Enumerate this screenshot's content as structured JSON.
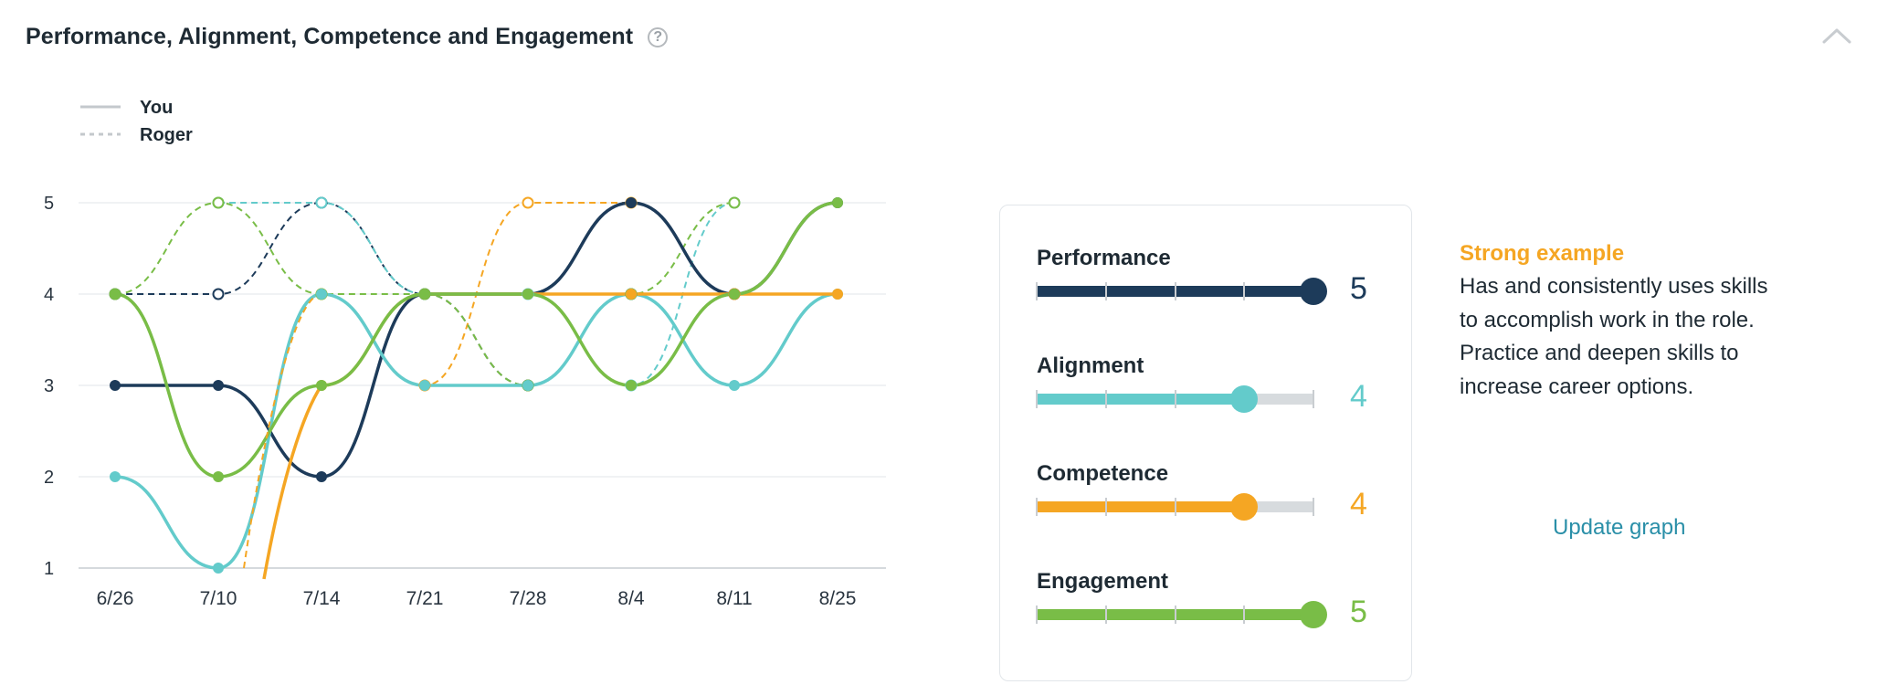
{
  "header": {
    "title": "Performance, Alignment, Competence and Engagement",
    "help_icon": "?"
  },
  "chart_data": {
    "type": "line",
    "title": "",
    "xlabel": "",
    "ylabel": "",
    "categories": [
      "6/26",
      "7/10",
      "7/14",
      "7/21",
      "7/28",
      "8/4",
      "8/11",
      "8/25"
    ],
    "ylim": [
      1,
      5
    ],
    "yticks": [
      "1",
      "2",
      "3",
      "4",
      "5"
    ],
    "legend": [
      {
        "label": "You",
        "style": "solid"
      },
      {
        "label": "Roger",
        "style": "dashed"
      }
    ],
    "legend_position": "top-left",
    "series": [
      {
        "metric": "Performance",
        "person": "You",
        "color": "#1d3b5a",
        "values": [
          3,
          3,
          2,
          4,
          4,
          5,
          4,
          5
        ]
      },
      {
        "metric": "Alignment",
        "person": "You",
        "color": "#63cbcb",
        "values": [
          2,
          1,
          4,
          3,
          3,
          4,
          3,
          4
        ]
      },
      {
        "metric": "Competence",
        "person": "You",
        "color": "#f5a623",
        "values": [
          null,
          null,
          3,
          4,
          4,
          4,
          4,
          4
        ]
      },
      {
        "metric": "Engagement",
        "person": "You",
        "color": "#79bd47",
        "values": [
          4,
          2,
          3,
          4,
          4,
          3,
          4,
          5
        ]
      },
      {
        "metric": "Performance",
        "person": "Roger",
        "color": "#1d3b5a",
        "values": [
          4,
          4,
          5,
          4,
          3,
          4,
          4,
          null
        ]
      },
      {
        "metric": "Alignment",
        "person": "Roger",
        "color": "#63cbcb",
        "values": [
          null,
          5,
          5,
          4,
          4,
          3,
          5,
          null
        ]
      },
      {
        "metric": "Competence",
        "person": "Roger",
        "color": "#f5a623",
        "values": [
          null,
          null,
          4,
          3,
          5,
          5,
          4,
          null
        ]
      },
      {
        "metric": "Engagement",
        "person": "Roger",
        "color": "#79bd47",
        "values": [
          4,
          5,
          4,
          4,
          3,
          4,
          5,
          null
        ]
      }
    ]
  },
  "panel": {
    "max": 5,
    "metrics": [
      {
        "label": "Performance",
        "value": 5,
        "display": "5",
        "color": "#1d3b5a"
      },
      {
        "label": "Alignment",
        "value": 4,
        "display": "4",
        "color": "#63cbcb"
      },
      {
        "label": "Competence",
        "value": 4,
        "display": "4",
        "color": "#f5a623"
      },
      {
        "label": "Engagement",
        "value": 5,
        "display": "5",
        "color": "#79bd47"
      }
    ]
  },
  "description": {
    "title": "Strong example",
    "body": "Has and consistently uses skills to accomplish work in the role. Practice and deepen skills to increase career options."
  },
  "update_link": "Update graph"
}
